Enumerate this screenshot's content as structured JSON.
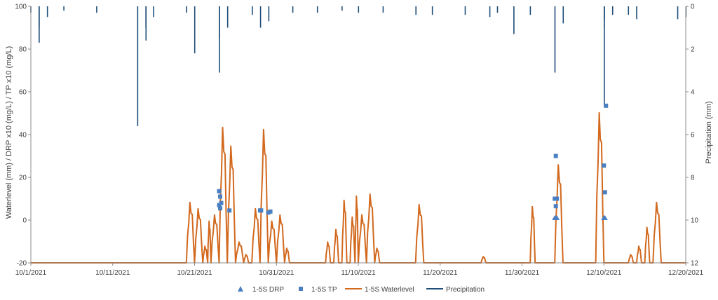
{
  "chart_data": {
    "type": "line",
    "x_range": [
      "10/1/2021",
      "12/20/2021"
    ],
    "x_ticks": [
      "10/1/2021",
      "10/11/2021",
      "10/21/2021",
      "10/31/2021",
      "11/10/2021",
      "11/20/2021",
      "11/30/2021",
      "12/10/2021",
      "12/20/2021"
    ],
    "y_left": {
      "label": "Waterlevel (mm) / DRP x10 (mg/L) / TP x10 (mg/L)",
      "range": [
        -20,
        100
      ],
      "ticks": [
        "-20",
        "0",
        "20",
        "40",
        "60",
        "80",
        "100"
      ]
    },
    "y_right": {
      "label": "Precipitation (mm)",
      "range": [
        0,
        12
      ],
      "reversed": true,
      "ticks": [
        "0",
        "2",
        "4",
        "6",
        "8",
        "10",
        "12"
      ]
    },
    "grid": false,
    "legend_position": "bottom",
    "colors": {
      "drp": "#4a7fc1",
      "tp": "#4a7fc1",
      "waterlevel": "#d2691e",
      "precipitation": "#1f4e79"
    },
    "series": [
      {
        "name": "1-5S DRP",
        "marker": "triangle",
        "points": [
          {
            "x": "12/4/2021",
            "y": 1
          },
          {
            "x": "12/4/2021",
            "y": 1
          },
          {
            "x": "12/4/2021",
            "y": 1
          },
          {
            "x": "12/10/2021",
            "y": 1
          },
          {
            "x": "12/10/2021",
            "y": 1
          }
        ]
      },
      {
        "name": "1-5S TP",
        "marker": "square",
        "points": [
          {
            "x": "10/24/2021",
            "y": 13.5
          },
          {
            "x": "10/24/2021",
            "y": 11
          },
          {
            "x": "10/24/2021",
            "y": 8
          },
          {
            "x": "10/24/2021",
            "y": 7
          },
          {
            "x": "10/24/2021",
            "y": 5.5
          },
          {
            "x": "10/25/2021",
            "y": 4.5
          },
          {
            "x": "10/29/2021",
            "y": 4.5
          },
          {
            "x": "10/29/2021",
            "y": 4.5
          },
          {
            "x": "10/30/2021",
            "y": 4
          },
          {
            "x": "10/30/2021",
            "y": 3.5
          },
          {
            "x": "12/4/2021",
            "y": 30
          },
          {
            "x": "12/4/2021",
            "y": 10
          },
          {
            "x": "12/4/2021",
            "y": 10
          },
          {
            "x": "12/4/2021",
            "y": 6.5
          },
          {
            "x": "12/10/2021",
            "y": 53.5
          },
          {
            "x": "12/10/2021",
            "y": 25.5
          },
          {
            "x": "12/10/2021",
            "y": 13
          }
        ]
      },
      {
        "name": "1-5S Waterlevel",
        "type": "line",
        "baseline": -20,
        "events": [
          {
            "start": "10/20/2021",
            "end": "10/21/2021",
            "peak": 9
          },
          {
            "start": "10/21/2021",
            "end": "10/22/2021",
            "peak": 6
          },
          {
            "start": "10/22/2021",
            "end": "10/22/2021",
            "peak": -12
          },
          {
            "start": "10/22/2021",
            "end": "10/23/2021",
            "peak": 0
          },
          {
            "start": "10/23/2021",
            "end": "10/24/2021",
            "peak": 3
          },
          {
            "start": "10/24/2021",
            "end": "10/25/2021",
            "peak": 45
          },
          {
            "start": "10/25/2021",
            "end": "10/26/2021",
            "peak": 36
          },
          {
            "start": "10/26/2021",
            "end": "10/27/2021",
            "peak": -10
          },
          {
            "start": "10/27/2021",
            "end": "10/27/2021",
            "peak": -16
          },
          {
            "start": "10/28/2021",
            "end": "10/29/2021",
            "peak": 6
          },
          {
            "start": "10/29/2021",
            "end": "10/30/2021",
            "peak": 44
          },
          {
            "start": "10/30/2021",
            "end": "10/31/2021",
            "peak": 0
          },
          {
            "start": "10/31/2021",
            "end": "11/1/2021",
            "peak": 3
          },
          {
            "start": "11/1/2021",
            "end": "11/1/2021",
            "peak": -13
          },
          {
            "start": "11/6/2021",
            "end": "11/6/2021",
            "peak": -10
          },
          {
            "start": "11/7/2021",
            "end": "11/7/2021",
            "peak": -4
          },
          {
            "start": "11/8/2021",
            "end": "11/8/2021",
            "peak": 10
          },
          {
            "start": "11/9/2021",
            "end": "11/9/2021",
            "peak": 2
          },
          {
            "start": "11/9/2021",
            "end": "11/10/2021",
            "peak": 12
          },
          {
            "start": "11/10/2021",
            "end": "11/11/2021",
            "peak": 3
          },
          {
            "start": "11/11/2021",
            "end": "11/12/2021",
            "peak": 13
          },
          {
            "start": "11/12/2021",
            "end": "11/12/2021",
            "peak": -13
          },
          {
            "start": "11/17/2021",
            "end": "11/18/2021",
            "peak": 8
          },
          {
            "start": "11/25/2021",
            "end": "11/25/2021",
            "peak": -17
          },
          {
            "start": "12/1/2021",
            "end": "12/1/2021",
            "peak": 7
          },
          {
            "start": "12/4/2021",
            "end": "12/5/2021",
            "peak": 27
          },
          {
            "start": "12/9/2021",
            "end": "12/10/2021",
            "peak": 52
          },
          {
            "start": "12/13/2021",
            "end": "12/13/2021",
            "peak": -16
          },
          {
            "start": "12/14/2021",
            "end": "12/14/2021",
            "peak": -12
          },
          {
            "start": "12/15/2021",
            "end": "12/15/2021",
            "peak": -3
          },
          {
            "start": "12/16/2021",
            "end": "12/17/2021",
            "peak": 9
          }
        ]
      },
      {
        "name": "Precipitation",
        "type": "bars-from-top",
        "events": [
          {
            "x": "10/1/2021",
            "mm": 0.3
          },
          {
            "x": "10/2/2021",
            "mm": 1.0
          },
          {
            "x": "10/2/2021",
            "mm": 1.7
          },
          {
            "x": "10/3/2021",
            "mm": 0.5
          },
          {
            "x": "10/5/2021",
            "mm": 0.2
          },
          {
            "x": "10/9/2021",
            "mm": 0.3
          },
          {
            "x": "10/14/2021",
            "mm": 5.6
          },
          {
            "x": "10/15/2021",
            "mm": 1.0
          },
          {
            "x": "10/15/2021",
            "mm": 1.6
          },
          {
            "x": "10/16/2021",
            "mm": 0.5
          },
          {
            "x": "10/20/2021",
            "mm": 0.3
          },
          {
            "x": "10/21/2021",
            "mm": 2.2
          },
          {
            "x": "10/24/2021",
            "mm": 1.5
          },
          {
            "x": "10/24/2021",
            "mm": 3.1
          },
          {
            "x": "10/25/2021",
            "mm": 1.0
          },
          {
            "x": "10/28/2021",
            "mm": 0.4
          },
          {
            "x": "10/29/2021",
            "mm": 1.0
          },
          {
            "x": "10/30/2021",
            "mm": 0.7
          },
          {
            "x": "11/2/2021",
            "mm": 0.3
          },
          {
            "x": "11/5/2021",
            "mm": 0.3
          },
          {
            "x": "11/8/2021",
            "mm": 0.2
          },
          {
            "x": "11/10/2021",
            "mm": 0.3
          },
          {
            "x": "11/13/2021",
            "mm": 0.3
          },
          {
            "x": "11/17/2021",
            "mm": 0.4
          },
          {
            "x": "11/19/2021",
            "mm": 0.4
          },
          {
            "x": "11/23/2021",
            "mm": 0.4
          },
          {
            "x": "11/26/2021",
            "mm": 0.5
          },
          {
            "x": "11/27/2021",
            "mm": 0.3
          },
          {
            "x": "11/29/2021",
            "mm": 1.3
          },
          {
            "x": "12/1/2021",
            "mm": 0.4
          },
          {
            "x": "12/4/2021",
            "mm": 3.1
          },
          {
            "x": "12/5/2021",
            "mm": 0.8
          },
          {
            "x": "12/10/2021",
            "mm": 1.0
          },
          {
            "x": "12/10/2021",
            "mm": 4.7
          },
          {
            "x": "12/10/2021",
            "mm": 0.6
          },
          {
            "x": "12/11/2021",
            "mm": 0.4
          },
          {
            "x": "12/13/2021",
            "mm": 0.4
          },
          {
            "x": "12/14/2021",
            "mm": 0.6
          },
          {
            "x": "12/19/2021",
            "mm": 0.6
          },
          {
            "x": "12/20/2021",
            "mm": 0.5
          }
        ]
      }
    ]
  }
}
